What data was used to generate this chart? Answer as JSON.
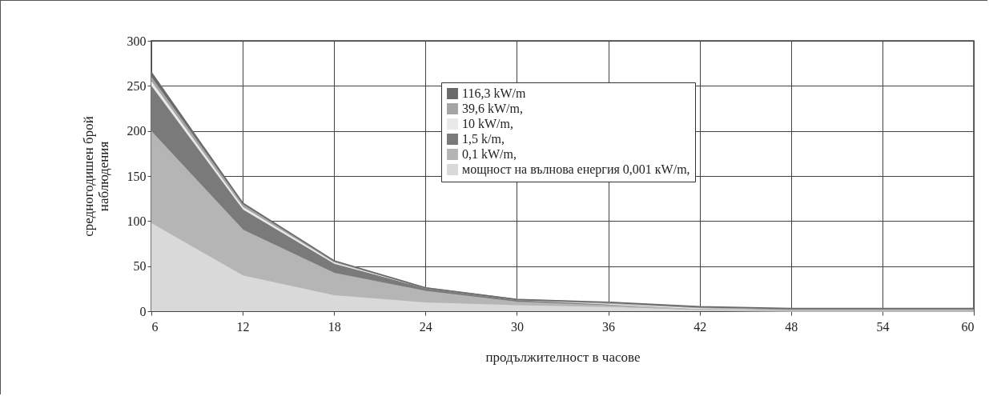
{
  "chart_data": {
    "type": "area",
    "stacked": true,
    "x": [
      6,
      12,
      18,
      24,
      30,
      36,
      42,
      48,
      54,
      60
    ],
    "xlim": [
      6,
      60
    ],
    "xticks": [
      6,
      12,
      18,
      24,
      30,
      36,
      42,
      48,
      54,
      60
    ],
    "ylim": [
      0,
      300
    ],
    "yticks": [
      0,
      50,
      100,
      150,
      200,
      250,
      300
    ],
    "xlabel": "продължителност в часове",
    "ylabel": "средногодишен брой наблюдения",
    "grid": true,
    "legend": "top right",
    "series": [
      {
        "name": "мощност на вълнова енергия 0,001 кW/m,",
        "color": "#d9d9d9",
        "values": [
          97,
          39,
          17,
          9,
          6,
          4,
          1,
          0,
          0,
          0
        ]
      },
      {
        "name": "0,1 kW/m,",
        "color": "#b5b5b5",
        "values": [
          102,
          51,
          25,
          13,
          4,
          2,
          1,
          1,
          1,
          1
        ]
      },
      {
        "name": "1,5  k/m,",
        "color": "#7a7a7a",
        "values": [
          50,
          22,
          10,
          3,
          2,
          2,
          1,
          1,
          1,
          1
        ]
      },
      {
        "name": "10 kW/m,",
        "color": "#e9e9e9",
        "values": [
          5,
          3,
          2,
          1,
          1,
          0,
          0,
          0,
          0,
          0
        ]
      },
      {
        "name": "39,6 kW/m,",
        "color": "#a5a5a5",
        "values": [
          5,
          3,
          1,
          0,
          0,
          1,
          1,
          0,
          0,
          0
        ]
      },
      {
        "name": "116,3 kW/m",
        "color": "#6a6a6a",
        "values": [
          6,
          2,
          1,
          0,
          0,
          1,
          1,
          1,
          1,
          1
        ]
      }
    ]
  }
}
